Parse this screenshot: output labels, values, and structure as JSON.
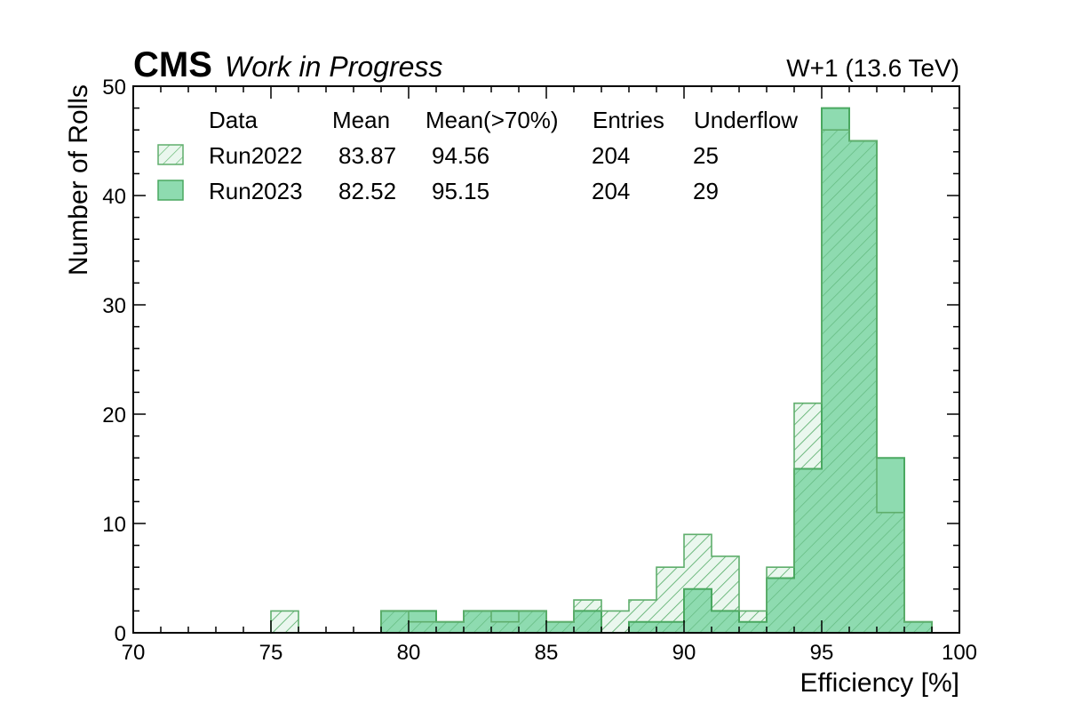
{
  "chart_data": {
    "type": "histogram",
    "experiment_label": "CMS",
    "status_label": "Work in Progress",
    "run_label": "W+1 (13.6 TeV)",
    "xlabel": "Efficiency [%]",
    "ylabel": "Number of Rolls",
    "xlim": [
      70,
      100
    ],
    "ylim": [
      0,
      50
    ],
    "xticks": [
      70,
      75,
      80,
      85,
      90,
      95,
      100
    ],
    "yticks": [
      0,
      10,
      20,
      30,
      40,
      50
    ],
    "bin_width": 1,
    "bin_edges_start": 70,
    "legend": {
      "placement": "top-left",
      "columns": [
        "Data",
        "Mean",
        "Mean(>70%)",
        "Entries",
        "Underflow"
      ]
    },
    "series": [
      {
        "name": "Run2022",
        "style": "hatched",
        "fill_color": "#e8f6ec",
        "edge_color": "#5fae6c",
        "mean": "83.87",
        "mean_gt70": "94.56",
        "entries": "204",
        "underflow": "25",
        "counts": [
          0,
          0,
          0,
          0,
          0,
          2,
          0,
          0,
          0,
          2,
          1,
          1,
          2,
          1,
          2,
          1,
          3,
          2,
          3,
          6,
          9,
          7,
          2,
          6,
          21,
          46,
          45,
          11,
          1,
          0
        ]
      },
      {
        "name": "Run2023",
        "style": "filled",
        "fill_color": "#8edbb0",
        "edge_color": "#4aa860",
        "mean": "82.52",
        "mean_gt70": "95.15",
        "entries": "204",
        "underflow": "29",
        "counts": [
          0,
          0,
          0,
          0,
          0,
          0,
          0,
          0,
          0,
          2,
          2,
          1,
          2,
          2,
          2,
          1,
          2,
          0,
          1,
          1,
          4,
          2,
          1,
          5,
          15,
          48,
          45,
          16,
          1,
          0
        ]
      }
    ]
  }
}
